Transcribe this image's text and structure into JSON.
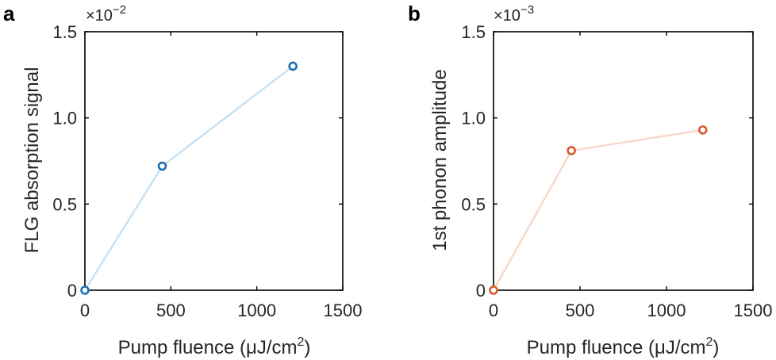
{
  "chart_data": [
    {
      "type": "line",
      "panel_label": "a",
      "xlabel": "Pump fluence (μJ/cm",
      "xlabel_superscript": "2",
      "xlabel_suffix": ")",
      "ylabel": "FLG absorption signal",
      "y_multiplier_base": "×10",
      "y_multiplier_exp": "−2",
      "xlim": [
        0,
        1500
      ],
      "ylim": [
        0,
        1.5
      ],
      "xticks": [
        0,
        500,
        1000,
        1500
      ],
      "xtick_labels": [
        "0",
        "500",
        "1000",
        "1500"
      ],
      "yticks": [
        0,
        0.5,
        1.0,
        1.5
      ],
      "ytick_labels": [
        "0",
        "0.5",
        "1.0",
        "1.5"
      ],
      "series": [
        {
          "name": "FLG absorption signal",
          "x": [
            0,
            450,
            1210
          ],
          "y": [
            0,
            0.72,
            1.3
          ],
          "marker_color": "#1f6fb2",
          "line_color": "#c6e2f3"
        }
      ]
    },
    {
      "type": "line",
      "panel_label": "b",
      "xlabel": "Pump fluence (μJ/cm",
      "xlabel_superscript": "2",
      "xlabel_suffix": ")",
      "ylabel": "1st phonon amplitude",
      "y_multiplier_base": "×10",
      "y_multiplier_exp": "−3",
      "xlim": [
        0,
        1500
      ],
      "ylim": [
        0,
        1.5
      ],
      "xticks": [
        0,
        500,
        1000,
        1500
      ],
      "xtick_labels": [
        "0",
        "500",
        "1000",
        "1500"
      ],
      "yticks": [
        0,
        0.5,
        1.0,
        1.5
      ],
      "ytick_labels": [
        "0",
        "0.5",
        "1.0",
        "1.5"
      ],
      "series": [
        {
          "name": "1st phonon amplitude",
          "x": [
            0,
            450,
            1210
          ],
          "y": [
            0,
            0.81,
            0.93
          ],
          "marker_color": "#d65a2c",
          "line_color": "#f7d9cb"
        }
      ]
    }
  ]
}
